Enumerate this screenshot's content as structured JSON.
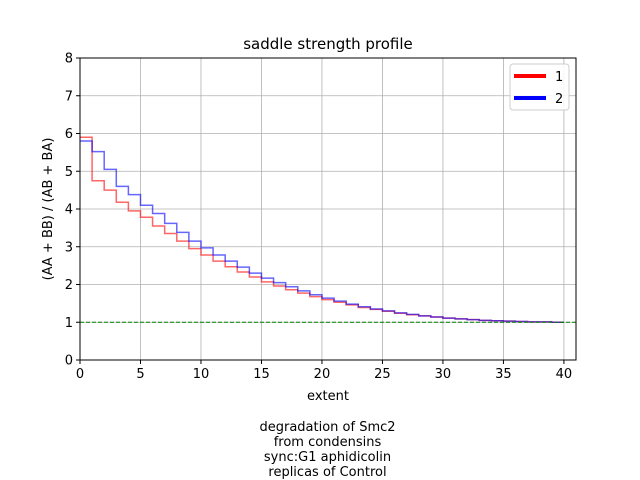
{
  "chart_data": {
    "type": "line",
    "title": "saddle strength profile",
    "xlabel": "extent",
    "ylabel": "(AA + BB) / (AB + BA)",
    "xlim": [
      0,
      41
    ],
    "ylim": [
      0,
      8
    ],
    "xticks": [
      0,
      5,
      10,
      15,
      20,
      25,
      30,
      35,
      40
    ],
    "yticks": [
      0,
      1,
      2,
      3,
      4,
      5,
      6,
      7,
      8
    ],
    "grid": true,
    "legend_position": "top-right",
    "reference_line": {
      "y": 1,
      "color": "#008000",
      "style": "dashed"
    },
    "step": "post",
    "x": [
      0,
      1,
      2,
      3,
      4,
      5,
      6,
      7,
      8,
      9,
      10,
      11,
      12,
      13,
      14,
      15,
      16,
      17,
      18,
      19,
      20,
      21,
      22,
      23,
      24,
      25,
      26,
      27,
      28,
      29,
      30,
      31,
      32,
      33,
      34,
      35,
      36,
      37,
      38,
      39
    ],
    "series": [
      {
        "name": "1",
        "color": "#ff0000",
        "values": [
          5.9,
          4.75,
          4.5,
          4.18,
          3.95,
          3.78,
          3.55,
          3.35,
          3.15,
          2.95,
          2.78,
          2.62,
          2.47,
          2.33,
          2.2,
          2.07,
          1.96,
          1.86,
          1.77,
          1.68,
          1.6,
          1.53,
          1.46,
          1.39,
          1.34,
          1.29,
          1.24,
          1.2,
          1.17,
          1.14,
          1.11,
          1.09,
          1.07,
          1.05,
          1.04,
          1.03,
          1.02,
          1.01,
          1.01,
          1.0
        ]
      },
      {
        "name": "2",
        "color": "#0000ff",
        "values": [
          5.8,
          5.52,
          5.05,
          4.6,
          4.38,
          4.1,
          3.88,
          3.62,
          3.38,
          3.15,
          2.97,
          2.78,
          2.62,
          2.46,
          2.3,
          2.17,
          2.05,
          1.94,
          1.83,
          1.73,
          1.64,
          1.56,
          1.48,
          1.41,
          1.35,
          1.3,
          1.25,
          1.21,
          1.17,
          1.14,
          1.11,
          1.09,
          1.07,
          1.05,
          1.04,
          1.03,
          1.02,
          1.01,
          1.01,
          1.0
        ]
      }
    ]
  },
  "caption": {
    "lines": [
      "degradation of Smc2",
      "from condensins",
      "sync:G1 aphidicolin",
      "replicas of Control"
    ]
  }
}
